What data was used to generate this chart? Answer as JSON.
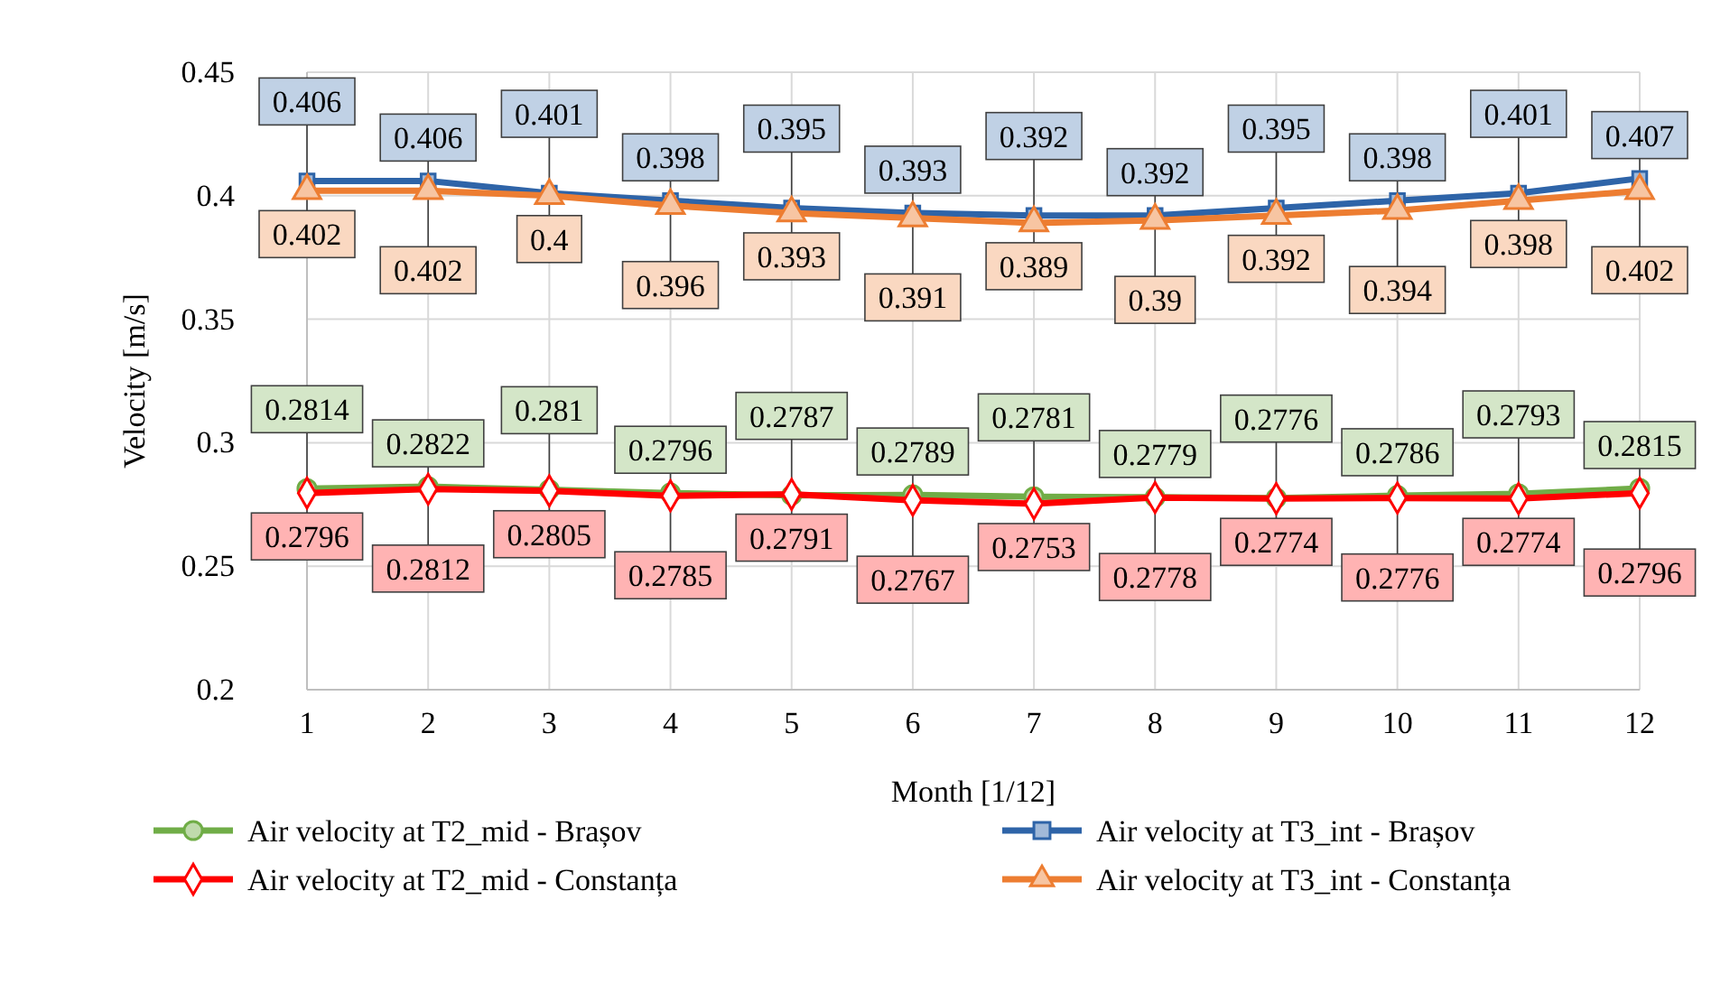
{
  "chart_data": {
    "type": "line",
    "xlabel": "Month [1/12]",
    "ylabel": "Velocity [m/s]",
    "x": [
      1,
      2,
      3,
      4,
      5,
      6,
      7,
      8,
      9,
      10,
      11,
      12
    ],
    "xlim": [
      1,
      12
    ],
    "xticks": [
      1,
      2,
      3,
      4,
      5,
      6,
      7,
      8,
      9,
      10,
      11,
      12
    ],
    "ylim": [
      0.2,
      0.45
    ],
    "yticks": [
      0.2,
      0.25,
      0.3,
      0.35,
      0.4,
      0.45
    ],
    "grid": true,
    "legend": "bottom",
    "data_labels": true,
    "line_style": "solid",
    "series": [
      {
        "name": "Air velocity at T2_mid - Brașov",
        "color": "#70ad47",
        "marker": "circle",
        "values": [
          0.2814,
          0.2822,
          0.281,
          0.2796,
          0.2787,
          0.2789,
          0.2781,
          0.2779,
          0.2776,
          0.2786,
          0.2793,
          0.2815
        ]
      },
      {
        "name": "Air velocity at T3_int - Brașov",
        "color": "#2e64a8",
        "marker": "square",
        "values": [
          0.406,
          0.406,
          0.401,
          0.398,
          0.395,
          0.393,
          0.392,
          0.392,
          0.395,
          0.398,
          0.401,
          0.407
        ]
      },
      {
        "name": "Air velocity at T2_mid - Constanța",
        "color": "#ff0000",
        "marker": "diamond",
        "values": [
          0.2796,
          0.2812,
          0.2805,
          0.2785,
          0.2791,
          0.2767,
          0.2753,
          0.2778,
          0.2774,
          0.2776,
          0.2774,
          0.2796
        ]
      },
      {
        "name": "Air velocity at T3_int - Constanța",
        "color": "#ed7d31",
        "marker": "triangle",
        "values": [
          0.402,
          0.402,
          0.4,
          0.396,
          0.393,
          0.391,
          0.389,
          0.39,
          0.392,
          0.394,
          0.398,
          0.402
        ]
      }
    ]
  }
}
